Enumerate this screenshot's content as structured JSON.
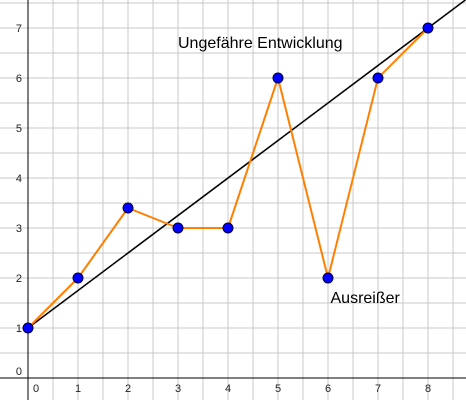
{
  "chart_data": {
    "type": "line",
    "title": "",
    "xlabel": "",
    "ylabel": "",
    "xlim": [
      -0.2,
      8.7
    ],
    "ylim": [
      -0.1,
      7.5
    ],
    "grid": true,
    "x_ticks": [
      "0",
      "1",
      "2",
      "3",
      "4",
      "5",
      "6",
      "7",
      "8"
    ],
    "y_ticks": [
      "0",
      "1",
      "2",
      "3",
      "4",
      "5",
      "6",
      "7"
    ],
    "series": [
      {
        "x": [
          0,
          1,
          2,
          3,
          4,
          5,
          6,
          7,
          8
        ],
        "values": [
          1,
          2,
          3.4,
          3,
          3,
          6,
          2,
          6,
          7
        ],
        "color": "#ff7f00",
        "marker_color": "#0000ff"
      }
    ],
    "trend_line": {
      "points": [
        [
          0,
          1
        ],
        [
          8,
          7
        ]
      ],
      "color": "#000000"
    },
    "annotations": [
      {
        "text": "Ungefähre Entwicklung",
        "x": 3.0,
        "y": 6.6
      },
      {
        "text": "Ausreißer",
        "x": 6.05,
        "y": 1.5
      }
    ]
  }
}
